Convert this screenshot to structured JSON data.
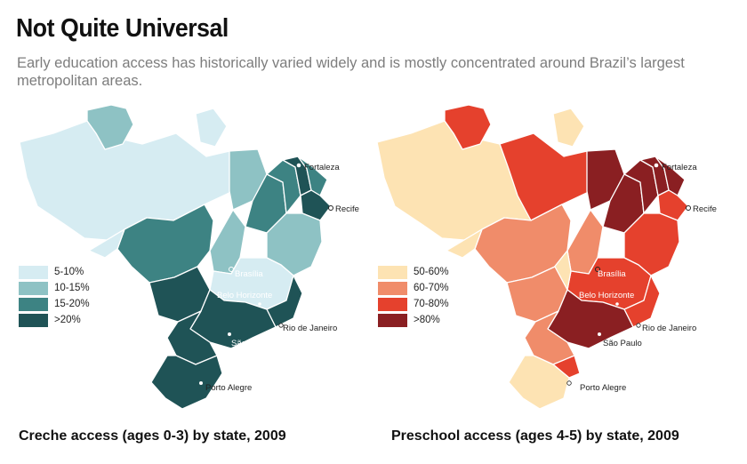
{
  "title": "Not Quite Universal",
  "subtitle": "Early education access has historically varied widely and is mostly concentrated around Brazil’s largest metropolitan areas.",
  "cities": {
    "fortaleza": "Fortaleza",
    "recife": "Recife",
    "brasilia": "Brasília",
    "belo_horizonte": "Belo Horizonte",
    "rio": "Rio de Janeiro",
    "sao_paulo": "São Paulo",
    "porto_alegre": "Porto Alegre"
  },
  "maps": [
    {
      "caption": "Creche access (ages 0-3) by state, 2009",
      "legend": [
        {
          "label": "5-10%",
          "color": "#d6ecf2"
        },
        {
          "label": "10-15%",
          "color": "#8ec2c4"
        },
        {
          "label": "15-20%",
          "color": "#3d8383"
        },
        {
          "label": ">20%",
          "color": "#1f5356"
        }
      ]
    },
    {
      "caption": "Preschool access (ages 4-5) by state, 2009",
      "legend": [
        {
          "label": "50-60%",
          "color": "#fde3b3"
        },
        {
          "label": "60-70%",
          "color": "#f08c6a"
        },
        {
          "label": "70-80%",
          "color": "#e5412d"
        },
        {
          "label": ">80%",
          "color": "#8a1f22"
        }
      ]
    }
  ]
}
